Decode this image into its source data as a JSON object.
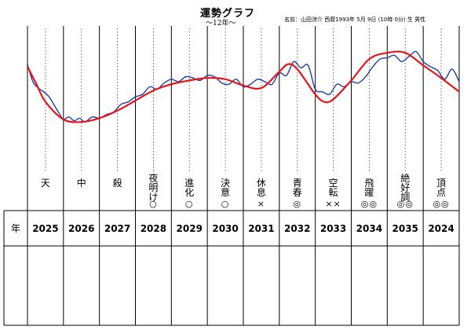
{
  "header": {
    "title": "運勢グラフ",
    "subtitle": "～12年～",
    "person_info": "名前：山田涼介 西暦1993年 5月 9日 (10時 0分) 生 男性"
  },
  "table": {
    "year_label": "年"
  },
  "colors": {
    "smooth_line": "#e8141b",
    "detail_line": "#1d3fa8",
    "grid": "#000000"
  },
  "chart_data": {
    "type": "line",
    "title": "運勢グラフ",
    "subtitle": "～12年～",
    "categories": [
      "2025",
      "2026",
      "2027",
      "2028",
      "2029",
      "2030",
      "2031",
      "2032",
      "2033",
      "2034",
      "2035",
      "2024"
    ],
    "fortune_names": [
      "天",
      "中",
      "殺",
      "夜明け",
      "進化",
      "決意",
      "休息",
      "青春",
      "空転",
      "飛躍",
      "絶好調",
      "頂点"
    ],
    "marks": [
      "",
      "",
      "",
      "○",
      "○",
      "○",
      "×",
      "◎",
      "××",
      "◎◎",
      "◎◎",
      "◎◎"
    ],
    "ylim": [
      0,
      100
    ],
    "grid": "vertical dotted guides per year",
    "series": [
      {
        "type": "smooth",
        "x": [
          0,
          0.25,
          0.5,
          1,
          1.5,
          2,
          2.5,
          3,
          3.5,
          4,
          4.5,
          5,
          5.5,
          6,
          6.5,
          7,
          7.25,
          7.5,
          8,
          8.25,
          8.5,
          9,
          9.5,
          10,
          10.5,
          11,
          11.5,
          12
        ],
        "values": [
          72,
          58,
          44,
          30,
          28,
          31,
          37,
          45,
          53,
          58,
          61,
          63,
          62,
          57,
          55,
          68,
          74,
          70,
          50,
          44,
          46,
          61,
          78,
          83,
          83,
          73,
          63,
          52
        ]
      },
      {
        "type": "detailed",
        "x": [
          0,
          0.15,
          0.3,
          0.45,
          0.6,
          0.75,
          0.9,
          1,
          1.15,
          1.3,
          1.45,
          1.6,
          1.8,
          2,
          2.2,
          2.4,
          2.6,
          2.8,
          3,
          3.2,
          3.4,
          3.6,
          3.8,
          4,
          4.2,
          4.4,
          4.6,
          4.8,
          5,
          5.2,
          5.4,
          5.6,
          5.8,
          6,
          6.2,
          6.4,
          6.6,
          6.8,
          7,
          7.2,
          7.4,
          7.6,
          7.8,
          8,
          8.2,
          8.4,
          8.6,
          8.8,
          9,
          9.2,
          9.4,
          9.6,
          9.8,
          10,
          10.2,
          10.4,
          10.6,
          10.8,
          11,
          11.2,
          11.4,
          11.6,
          11.8,
          12
        ],
        "values": [
          74,
          60,
          55,
          52,
          48,
          41,
          34,
          30,
          32,
          29,
          31,
          28,
          32,
          31,
          34,
          36,
          42,
          44,
          48,
          50,
          56,
          54,
          59,
          62,
          60,
          64,
          63,
          61,
          65,
          64,
          59,
          58,
          62,
          56,
          58,
          62,
          60,
          58,
          67,
          65,
          76,
          71,
          73,
          54,
          52,
          50,
          58,
          56,
          60,
          59,
          64,
          72,
          78,
          79,
          81,
          76,
          80,
          84,
          76,
          72,
          69,
          62,
          70,
          60
        ]
      }
    ]
  }
}
